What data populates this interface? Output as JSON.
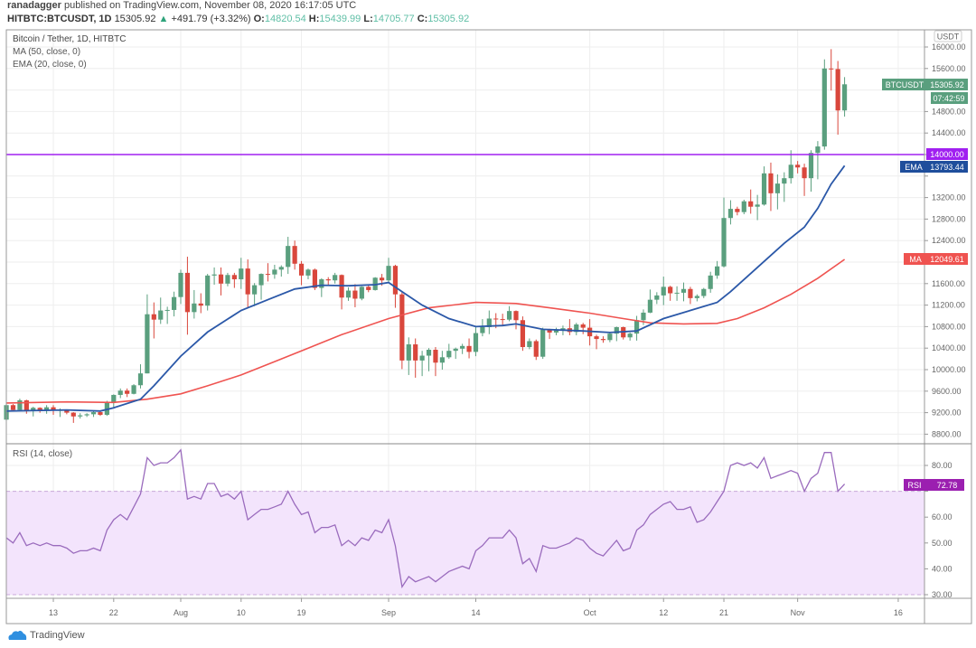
{
  "header": {
    "author": "ranadagger",
    "published_text": "published on TradingView.com, November 08, 2020 16:17:05 UTC",
    "symbol": "HITBTC:BTCUSDT, 1D",
    "last": "15305.92",
    "change": "+491.79 (+3.32%)",
    "o_label": "O:",
    "o": "14820.54",
    "h_label": "H:",
    "h": "15439.99",
    "l_label": "L:",
    "l": "14705.77",
    "c_label": "C:",
    "c": "15305.92"
  },
  "legend": {
    "title": "Bitcoin / Tether, 1D, HITBTC",
    "ma": "MA (50, close, 0)",
    "ema": "EMA (20, close, 0)",
    "rsi": "RSI (14, close)"
  },
  "axis": {
    "currency": "USDT",
    "price_ticks": [
      8800,
      9200,
      9600,
      10000,
      10400,
      10800,
      11200,
      11600,
      12000,
      12400,
      12800,
      13200,
      13600,
      14000,
      14400,
      14800,
      15200,
      15600,
      16000
    ],
    "rsi_ticks": [
      30,
      40,
      50,
      60,
      70,
      80
    ],
    "x_ticks": [
      {
        "label": "13",
        "date": "2020-07-13"
      },
      {
        "label": "22",
        "date": "2020-07-22"
      },
      {
        "label": "Aug",
        "date": "2020-08-01"
      },
      {
        "label": "10",
        "date": "2020-08-10"
      },
      {
        "label": "19",
        "date": "2020-08-19"
      },
      {
        "label": "Sep",
        "date": "2020-09-01"
      },
      {
        "label": "14",
        "date": "2020-09-14"
      },
      {
        "label": "Oct",
        "date": "2020-10-01"
      },
      {
        "label": "12",
        "date": "2020-10-12"
      },
      {
        "label": "21",
        "date": "2020-10-21"
      },
      {
        "label": "Nov",
        "date": "2020-11-01"
      },
      {
        "label": "16",
        "date": "2020-11-16"
      }
    ]
  },
  "tags": {
    "symbol_label": "BTCUSDT",
    "symbol_price": "15305.92",
    "countdown": "07:42:59",
    "level": "14000.00",
    "ema_label": "EMA",
    "ema_value": "13793.44",
    "ma_label": "MA",
    "ma_value": "12049.61",
    "rsi_label": "RSI",
    "rsi_value": "72.78"
  },
  "brand": "TradingView",
  "colors": {
    "up": "#5a9f7e",
    "down": "#d9473c",
    "ema": "#2b58a8",
    "ma": "#ef5350",
    "level": "#a020f0",
    "rsi": "#9a6bbd",
    "rsi_band": "#f3e4fc"
  },
  "chart_data": {
    "type": "candlestick",
    "ylim": [
      8650,
      16150
    ],
    "horizontal_level": 14000,
    "rsi_band": [
      30,
      70
    ],
    "rsi_ylim": [
      27,
      90
    ],
    "candles_fields": [
      "date",
      "open",
      "high",
      "low",
      "close",
      "rsi"
    ],
    "candles": [
      [
        "2020-07-06",
        9070,
        9360,
        9060,
        9340,
        52
      ],
      [
        "2020-07-07",
        9340,
        9360,
        9220,
        9250,
        50
      ],
      [
        "2020-07-08",
        9250,
        9460,
        9230,
        9430,
        54
      ],
      [
        "2020-07-09",
        9430,
        9440,
        9180,
        9230,
        49
      ],
      [
        "2020-07-10",
        9230,
        9310,
        9130,
        9290,
        50
      ],
      [
        "2020-07-11",
        9290,
        9300,
        9200,
        9240,
        49
      ],
      [
        "2020-07-12",
        9240,
        9340,
        9180,
        9300,
        50
      ],
      [
        "2020-07-13",
        9300,
        9340,
        9160,
        9240,
        49
      ],
      [
        "2020-07-14",
        9240,
        9280,
        9120,
        9250,
        49
      ],
      [
        "2020-07-15",
        9250,
        9260,
        9170,
        9200,
        48
      ],
      [
        "2020-07-16",
        9200,
        9210,
        9010,
        9130,
        46
      ],
      [
        "2020-07-17",
        9130,
        9190,
        9090,
        9150,
        47
      ],
      [
        "2020-07-18",
        9150,
        9190,
        9120,
        9170,
        47
      ],
      [
        "2020-07-19",
        9170,
        9230,
        9120,
        9210,
        48
      ],
      [
        "2020-07-20",
        9210,
        9220,
        9140,
        9160,
        47
      ],
      [
        "2020-07-21",
        9160,
        9420,
        9140,
        9390,
        55
      ],
      [
        "2020-07-22",
        9390,
        9540,
        9290,
        9530,
        59
      ],
      [
        "2020-07-23",
        9530,
        9650,
        9470,
        9610,
        61
      ],
      [
        "2020-07-24",
        9610,
        9650,
        9490,
        9550,
        59
      ],
      [
        "2020-07-25",
        9550,
        9730,
        9540,
        9710,
        64
      ],
      [
        "2020-07-26",
        9710,
        10100,
        9650,
        9930,
        69
      ],
      [
        "2020-07-27",
        9930,
        11400,
        9930,
        11030,
        83
      ],
      [
        "2020-07-28",
        11030,
        11250,
        10580,
        10930,
        80
      ],
      [
        "2020-07-29",
        10930,
        11340,
        10850,
        11100,
        81
      ],
      [
        "2020-07-30",
        11100,
        11170,
        10850,
        11110,
        81
      ],
      [
        "2020-07-31",
        11110,
        11450,
        10990,
        11350,
        83
      ],
      [
        "2020-08-01",
        11350,
        11860,
        11220,
        11800,
        86
      ],
      [
        "2020-08-02",
        11800,
        12100,
        10650,
        11070,
        67
      ],
      [
        "2020-08-03",
        11070,
        11480,
        10950,
        11230,
        68
      ],
      [
        "2020-08-04",
        11230,
        11420,
        11050,
        11190,
        67
      ],
      [
        "2020-08-05",
        11190,
        11780,
        11100,
        11750,
        73
      ],
      [
        "2020-08-06",
        11750,
        11900,
        11580,
        11770,
        73
      ],
      [
        "2020-08-07",
        11770,
        11900,
        11380,
        11600,
        68
      ],
      [
        "2020-08-08",
        11600,
        11800,
        11550,
        11760,
        69
      ],
      [
        "2020-08-09",
        11760,
        11800,
        11520,
        11680,
        67
      ],
      [
        "2020-08-10",
        11680,
        12080,
        11500,
        11880,
        70
      ],
      [
        "2020-08-11",
        11880,
        12050,
        11150,
        11400,
        59
      ],
      [
        "2020-08-12",
        11400,
        11610,
        11180,
        11570,
        61
      ],
      [
        "2020-08-13",
        11570,
        11790,
        11300,
        11780,
        63
      ],
      [
        "2020-08-14",
        11780,
        11980,
        11640,
        11770,
        63
      ],
      [
        "2020-08-15",
        11770,
        11950,
        11690,
        11860,
        64
      ],
      [
        "2020-08-16",
        11860,
        11940,
        11730,
        11910,
        65
      ],
      [
        "2020-08-17",
        11910,
        12470,
        11780,
        12300,
        70
      ],
      [
        "2020-08-18",
        12300,
        12400,
        11860,
        11970,
        65
      ],
      [
        "2020-08-19",
        11970,
        12020,
        11570,
        11750,
        61
      ],
      [
        "2020-08-20",
        11750,
        11880,
        11680,
        11860,
        62
      ],
      [
        "2020-08-21",
        11860,
        11880,
        11480,
        11520,
        54
      ],
      [
        "2020-08-22",
        11520,
        11700,
        11350,
        11680,
        56
      ],
      [
        "2020-08-23",
        11680,
        11720,
        11580,
        11660,
        56
      ],
      [
        "2020-08-24",
        11660,
        11800,
        11600,
        11760,
        57
      ],
      [
        "2020-08-25",
        11760,
        11770,
        11120,
        11340,
        49
      ],
      [
        "2020-08-26",
        11340,
        11530,
        11280,
        11470,
        51
      ],
      [
        "2020-08-27",
        11470,
        11590,
        11160,
        11320,
        49
      ],
      [
        "2020-08-28",
        11320,
        11550,
        11290,
        11540,
        52
      ],
      [
        "2020-08-29",
        11540,
        11580,
        11440,
        11480,
        51
      ],
      [
        "2020-08-30",
        11480,
        11720,
        11470,
        11710,
        55
      ],
      [
        "2020-08-31",
        11710,
        11780,
        11560,
        11660,
        54
      ],
      [
        "2020-09-01",
        11660,
        12080,
        11620,
        11930,
        59
      ],
      [
        "2020-09-02",
        11930,
        11950,
        11150,
        11400,
        49
      ],
      [
        "2020-09-03",
        11400,
        11450,
        10010,
        10170,
        33
      ],
      [
        "2020-09-04",
        10170,
        10600,
        9900,
        10470,
        37
      ],
      [
        "2020-09-05",
        10470,
        10580,
        9850,
        10170,
        35
      ],
      [
        "2020-09-06",
        10170,
        10350,
        9880,
        10260,
        36
      ],
      [
        "2020-09-07",
        10260,
        10400,
        9970,
        10370,
        37
      ],
      [
        "2020-09-08",
        10370,
        10420,
        9880,
        10130,
        35
      ],
      [
        "2020-09-09",
        10130,
        10350,
        10000,
        10230,
        37
      ],
      [
        "2020-09-10",
        10230,
        10480,
        10200,
        10350,
        39
      ],
      [
        "2020-09-11",
        10350,
        10410,
        10200,
        10390,
        40
      ],
      [
        "2020-09-12",
        10390,
        10480,
        10290,
        10440,
        41
      ],
      [
        "2020-09-13",
        10440,
        10580,
        10210,
        10330,
        40
      ],
      [
        "2020-09-14",
        10330,
        10800,
        10250,
        10680,
        47
      ],
      [
        "2020-09-15",
        10680,
        10940,
        10620,
        10790,
        49
      ],
      [
        "2020-09-16",
        10790,
        11100,
        10660,
        10950,
        52
      ],
      [
        "2020-09-17",
        10950,
        11050,
        10770,
        10940,
        52
      ],
      [
        "2020-09-18",
        10940,
        11040,
        10830,
        10930,
        52
      ],
      [
        "2020-09-19",
        10930,
        11180,
        10900,
        11090,
        55
      ],
      [
        "2020-09-20",
        11090,
        11100,
        10750,
        10920,
        52
      ],
      [
        "2020-09-21",
        10920,
        10990,
        10350,
        10420,
        42
      ],
      [
        "2020-09-22",
        10420,
        10580,
        10380,
        10530,
        44
      ],
      [
        "2020-09-23",
        10530,
        10560,
        10180,
        10240,
        39
      ],
      [
        "2020-09-24",
        10240,
        10780,
        10200,
        10740,
        49
      ],
      [
        "2020-09-25",
        10740,
        10760,
        10570,
        10690,
        48
      ],
      [
        "2020-09-26",
        10690,
        10780,
        10640,
        10730,
        48
      ],
      [
        "2020-09-27",
        10730,
        10820,
        10640,
        10770,
        49
      ],
      [
        "2020-09-28",
        10770,
        10940,
        10640,
        10700,
        50
      ],
      [
        "2020-09-29",
        10700,
        10870,
        10640,
        10840,
        52
      ],
      [
        "2020-09-30",
        10840,
        10870,
        10660,
        10780,
        51
      ],
      [
        "2020-10-01",
        10780,
        10940,
        10450,
        10620,
        48
      ],
      [
        "2020-10-02",
        10620,
        10650,
        10380,
        10570,
        46
      ],
      [
        "2020-10-03",
        10570,
        10620,
        10500,
        10550,
        45
      ],
      [
        "2020-10-04",
        10550,
        10700,
        10510,
        10670,
        48
      ],
      [
        "2020-10-05",
        10670,
        10800,
        10530,
        10790,
        51
      ],
      [
        "2020-10-06",
        10790,
        10800,
        10560,
        10600,
        47
      ],
      [
        "2020-10-07",
        10600,
        10690,
        10540,
        10670,
        48
      ],
      [
        "2020-10-08",
        10670,
        11000,
        10540,
        10920,
        55
      ],
      [
        "2020-10-09",
        10920,
        11120,
        10830,
        11060,
        57
      ],
      [
        "2020-10-10",
        11060,
        11490,
        11050,
        11300,
        61
      ],
      [
        "2020-10-11",
        11300,
        11440,
        11220,
        11380,
        63
      ],
      [
        "2020-10-12",
        11380,
        11730,
        11200,
        11540,
        65
      ],
      [
        "2020-10-13",
        11540,
        11560,
        11280,
        11420,
        66
      ],
      [
        "2020-10-14",
        11420,
        11550,
        11280,
        11430,
        63
      ],
      [
        "2020-10-15",
        11430,
        11620,
        11270,
        11500,
        63
      ],
      [
        "2020-10-16",
        11500,
        11540,
        11220,
        11330,
        64
      ],
      [
        "2020-10-17",
        11330,
        11400,
        11270,
        11370,
        58
      ],
      [
        "2020-10-18",
        11370,
        11520,
        11330,
        11500,
        59
      ],
      [
        "2020-10-19",
        11500,
        11820,
        11430,
        11750,
        62
      ],
      [
        "2020-10-20",
        11750,
        12020,
        11690,
        11920,
        66
      ],
      [
        "2020-10-21",
        11920,
        13200,
        11900,
        12820,
        70
      ],
      [
        "2020-10-22",
        12820,
        13150,
        12700,
        12990,
        80
      ],
      [
        "2020-10-23",
        12990,
        13030,
        12870,
        12930,
        81
      ],
      [
        "2020-10-24",
        12930,
        13160,
        12890,
        13130,
        80
      ],
      [
        "2020-10-25",
        13130,
        13350,
        12900,
        13030,
        81
      ],
      [
        "2020-10-26",
        13030,
        13250,
        12780,
        13070,
        79
      ],
      [
        "2020-10-27",
        13070,
        13780,
        13050,
        13650,
        83
      ],
      [
        "2020-10-28",
        13650,
        13850,
        12950,
        13280,
        75
      ],
      [
        "2020-10-29",
        13280,
        13630,
        12980,
        13460,
        76
      ],
      [
        "2020-10-30",
        13460,
        13670,
        13120,
        13560,
        77
      ],
      [
        "2020-10-31",
        13560,
        14080,
        13460,
        13810,
        78
      ],
      [
        "2020-11-01",
        13810,
        13880,
        13650,
        13760,
        77
      ],
      [
        "2020-11-02",
        13760,
        13830,
        13230,
        13560,
        70
      ],
      [
        "2020-11-03",
        13560,
        14080,
        13310,
        14030,
        75
      ],
      [
        "2020-11-04",
        14030,
        14250,
        13540,
        14150,
        77
      ],
      [
        "2020-11-05",
        14150,
        15770,
        14090,
        15600,
        85
      ],
      [
        "2020-11-06",
        15600,
        15960,
        15190,
        15590,
        85
      ],
      [
        "2020-11-07",
        15590,
        15740,
        14370,
        14820,
        70
      ],
      [
        "2020-11-08",
        14820.54,
        15439.99,
        14705.77,
        15305.92,
        72.78
      ]
    ],
    "ema20": [
      [
        "2020-07-06",
        9230
      ],
      [
        "2020-07-15",
        9250
      ],
      [
        "2020-07-20",
        9230
      ],
      [
        "2020-07-22",
        9290
      ],
      [
        "2020-07-26",
        9450
      ],
      [
        "2020-07-28",
        9700
      ],
      [
        "2020-08-01",
        10250
      ],
      [
        "2020-08-05",
        10700
      ],
      [
        "2020-08-10",
        11100
      ],
      [
        "2020-08-14",
        11300
      ],
      [
        "2020-08-18",
        11500
      ],
      [
        "2020-08-22",
        11570
      ],
      [
        "2020-08-26",
        11560
      ],
      [
        "2020-08-30",
        11580
      ],
      [
        "2020-09-01",
        11620
      ],
      [
        "2020-09-03",
        11450
      ],
      [
        "2020-09-06",
        11200
      ],
      [
        "2020-09-10",
        10950
      ],
      [
        "2020-09-14",
        10800
      ],
      [
        "2020-09-18",
        10820
      ],
      [
        "2020-09-20",
        10850
      ],
      [
        "2020-09-24",
        10750
      ],
      [
        "2020-09-30",
        10720
      ],
      [
        "2020-10-04",
        10690
      ],
      [
        "2020-10-08",
        10720
      ],
      [
        "2020-10-12",
        10950
      ],
      [
        "2020-10-16",
        11100
      ],
      [
        "2020-10-20",
        11250
      ],
      [
        "2020-10-22",
        11450
      ],
      [
        "2020-10-26",
        11900
      ],
      [
        "2020-10-30",
        12350
      ],
      [
        "2020-11-02",
        12650
      ],
      [
        "2020-11-04",
        13000
      ],
      [
        "2020-11-06",
        13450
      ],
      [
        "2020-11-08",
        13793.44
      ]
    ],
    "ma50": [
      [
        "2020-07-06",
        9380
      ],
      [
        "2020-07-15",
        9400
      ],
      [
        "2020-07-22",
        9390
      ],
      [
        "2020-07-27",
        9450
      ],
      [
        "2020-08-01",
        9550
      ],
      [
        "2020-08-05",
        9700
      ],
      [
        "2020-08-10",
        9900
      ],
      [
        "2020-08-15",
        10150
      ],
      [
        "2020-08-20",
        10400
      ],
      [
        "2020-08-25",
        10650
      ],
      [
        "2020-09-01",
        10950
      ],
      [
        "2020-09-07",
        11150
      ],
      [
        "2020-09-14",
        11250
      ],
      [
        "2020-09-20",
        11230
      ],
      [
        "2020-09-25",
        11150
      ],
      [
        "2020-10-01",
        11050
      ],
      [
        "2020-10-06",
        10950
      ],
      [
        "2020-10-10",
        10870
      ],
      [
        "2020-10-15",
        10850
      ],
      [
        "2020-10-20",
        10860
      ],
      [
        "2020-10-23",
        10950
      ],
      [
        "2020-10-27",
        11150
      ],
      [
        "2020-10-31",
        11400
      ],
      [
        "2020-11-04",
        11700
      ],
      [
        "2020-11-08",
        12049.61
      ]
    ]
  }
}
